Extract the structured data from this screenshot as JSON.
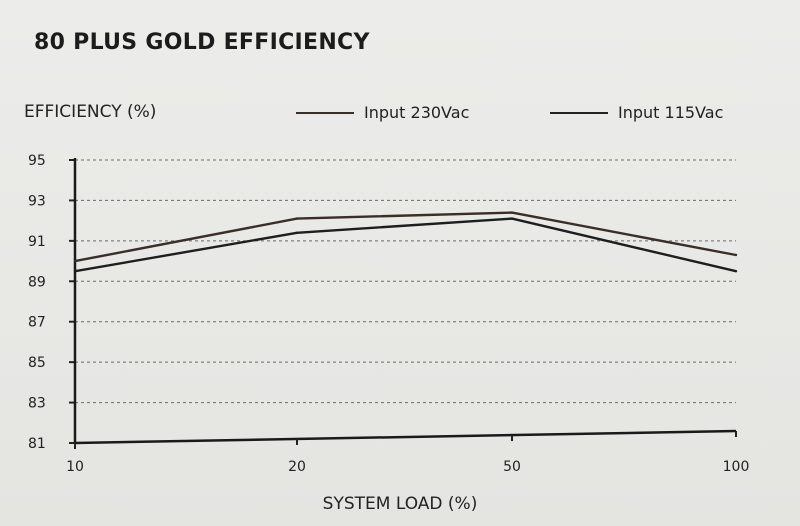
{
  "title": "80 PLUS GOLD EFFICIENCY",
  "chart_data": {
    "type": "line",
    "ylabel": "EFFICIENCY (%)",
    "xlabel": "SYSTEM LOAD (%)",
    "categories": [
      "10",
      "20",
      "50",
      "100"
    ],
    "yticks": [
      95,
      93,
      91,
      89,
      87,
      85,
      83,
      81
    ],
    "ylim": [
      81,
      95
    ],
    "grid": "dashed horizontal",
    "legend": "top",
    "series": [
      {
        "name": "Input 230Vac",
        "values": [
          90.0,
          92.1,
          92.4,
          90.3
        ],
        "color": "#3a2e28"
      },
      {
        "name": "Input 115Vac",
        "values": [
          89.5,
          91.4,
          92.1,
          89.5
        ],
        "color": "#1e1e1e"
      }
    ]
  }
}
